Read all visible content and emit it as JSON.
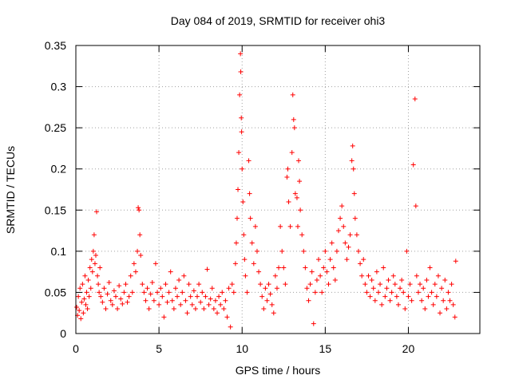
{
  "chart_data": {
    "type": "scatter",
    "title": "Day 084 of 2019, SRMTID for receiver ohi3",
    "xlabel": "GPS time / hours",
    "ylabel": "SRMTID / TECUs",
    "xlim": [
      0,
      24.3
    ],
    "ylim": [
      0,
      0.35
    ],
    "xticks": [
      0,
      5,
      10,
      15,
      20
    ],
    "xtick_labels": [
      "0",
      "5",
      "10",
      "15",
      "20"
    ],
    "yticks": [
      0,
      0.05,
      0.1,
      0.15,
      0.2,
      0.25,
      0.3,
      0.35
    ],
    "ytick_labels": [
      "0",
      "0.05",
      "0.1",
      "0.15",
      "0.2",
      "0.25",
      "0.3",
      "0.35"
    ],
    "grid": true,
    "marker": "+",
    "color": "#ff0000",
    "series": [
      {
        "name": "SRMTID",
        "points": [
          [
            0.05,
            0.032
          ],
          [
            0.1,
            0.022
          ],
          [
            0.15,
            0.045
          ],
          [
            0.2,
            0.028
          ],
          [
            0.25,
            0.055
          ],
          [
            0.3,
            0.018
          ],
          [
            0.35,
            0.038
          ],
          [
            0.4,
            0.06
          ],
          [
            0.45,
            0.025
          ],
          [
            0.5,
            0.042
          ],
          [
            0.55,
            0.07
          ],
          [
            0.6,
            0.035
          ],
          [
            0.65,
            0.05
          ],
          [
            0.7,
            0.03
          ],
          [
            0.75,
            0.065
          ],
          [
            0.8,
            0.045
          ],
          [
            0.85,
            0.08
          ],
          [
            0.9,
            0.055
          ],
          [
            0.95,
            0.09
          ],
          [
            1.0,
            0.075
          ],
          [
            1.05,
            0.1
          ],
          [
            1.1,
            0.12
          ],
          [
            1.15,
            0.085
          ],
          [
            1.2,
            0.095
          ],
          [
            1.25,
            0.148
          ],
          [
            1.3,
            0.07
          ],
          [
            1.35,
            0.06
          ],
          [
            1.4,
            0.05
          ],
          [
            1.45,
            0.08
          ],
          [
            1.5,
            0.045
          ],
          [
            1.6,
            0.038
          ],
          [
            1.7,
            0.055
          ],
          [
            1.8,
            0.03
          ],
          [
            1.9,
            0.048
          ],
          [
            2.0,
            0.062
          ],
          [
            2.1,
            0.04
          ],
          [
            2.2,
            0.035
          ],
          [
            2.3,
            0.052
          ],
          [
            2.4,
            0.045
          ],
          [
            2.5,
            0.03
          ],
          [
            2.6,
            0.058
          ],
          [
            2.7,
            0.042
          ],
          [
            2.8,
            0.036
          ],
          [
            2.9,
            0.05
          ],
          [
            3.0,
            0.06
          ],
          [
            3.1,
            0.038
          ],
          [
            3.2,
            0.045
          ],
          [
            3.3,
            0.07
          ],
          [
            3.4,
            0.05
          ],
          [
            3.5,
            0.085
          ],
          [
            3.6,
            0.075
          ],
          [
            3.7,
            0.1
          ],
          [
            3.75,
            0.153
          ],
          [
            3.8,
            0.15
          ],
          [
            3.85,
            0.12
          ],
          [
            3.9,
            0.095
          ],
          [
            4.0,
            0.06
          ],
          [
            4.1,
            0.05
          ],
          [
            4.2,
            0.04
          ],
          [
            4.3,
            0.055
          ],
          [
            4.4,
            0.03
          ],
          [
            4.5,
            0.048
          ],
          [
            4.6,
            0.062
          ],
          [
            4.7,
            0.04
          ],
          [
            4.8,
            0.085
          ],
          [
            4.9,
            0.05
          ],
          [
            5.0,
            0.035
          ],
          [
            5.1,
            0.055
          ],
          [
            5.2,
            0.045
          ],
          [
            5.3,
            0.02
          ],
          [
            5.4,
            0.06
          ],
          [
            5.5,
            0.038
          ],
          [
            5.6,
            0.05
          ],
          [
            5.7,
            0.075
          ],
          [
            5.8,
            0.04
          ],
          [
            5.9,
            0.03
          ],
          [
            6.0,
            0.055
          ],
          [
            6.1,
            0.045
          ],
          [
            6.2,
            0.065
          ],
          [
            6.3,
            0.035
          ],
          [
            6.4,
            0.05
          ],
          [
            6.5,
            0.07
          ],
          [
            6.6,
            0.04
          ],
          [
            6.7,
            0.025
          ],
          [
            6.8,
            0.06
          ],
          [
            6.9,
            0.045
          ],
          [
            7.0,
            0.035
          ],
          [
            7.1,
            0.052
          ],
          [
            7.2,
            0.03
          ],
          [
            7.3,
            0.045
          ],
          [
            7.4,
            0.06
          ],
          [
            7.5,
            0.038
          ],
          [
            7.6,
            0.05
          ],
          [
            7.7,
            0.03
          ],
          [
            7.8,
            0.045
          ],
          [
            7.9,
            0.078
          ],
          [
            8.0,
            0.035
          ],
          [
            8.1,
            0.042
          ],
          [
            8.2,
            0.055
          ],
          [
            8.3,
            0.03
          ],
          [
            8.4,
            0.04
          ],
          [
            8.5,
            0.025
          ],
          [
            8.6,
            0.045
          ],
          [
            8.7,
            0.035
          ],
          [
            8.8,
            0.05
          ],
          [
            8.9,
            0.03
          ],
          [
            9.0,
            0.04
          ],
          [
            9.1,
            0.02
          ],
          [
            9.2,
            0.055
          ],
          [
            9.3,
            0.008
          ],
          [
            9.4,
            0.06
          ],
          [
            9.5,
            0.05
          ],
          [
            9.6,
            0.085
          ],
          [
            9.65,
            0.11
          ],
          [
            9.7,
            0.14
          ],
          [
            9.75,
            0.175
          ],
          [
            9.8,
            0.22
          ],
          [
            9.85,
            0.29
          ],
          [
            9.9,
            0.34
          ],
          [
            9.92,
            0.318
          ],
          [
            9.95,
            0.262
          ],
          [
            9.97,
            0.245
          ],
          [
            10.0,
            0.2
          ],
          [
            10.05,
            0.16
          ],
          [
            10.1,
            0.12
          ],
          [
            10.15,
            0.09
          ],
          [
            10.2,
            0.07
          ],
          [
            10.3,
            0.05
          ],
          [
            10.4,
            0.21
          ],
          [
            10.45,
            0.17
          ],
          [
            10.5,
            0.14
          ],
          [
            10.6,
            0.11
          ],
          [
            10.7,
            0.085
          ],
          [
            10.8,
            0.13
          ],
          [
            10.9,
            0.1
          ],
          [
            11.0,
            0.075
          ],
          [
            11.1,
            0.06
          ],
          [
            11.2,
            0.045
          ],
          [
            11.3,
            0.03
          ],
          [
            11.4,
            0.055
          ],
          [
            11.5,
            0.04
          ],
          [
            11.6,
            0.06
          ],
          [
            11.7,
            0.048
          ],
          [
            11.8,
            0.035
          ],
          [
            11.9,
            0.025
          ],
          [
            12.0,
            0.07
          ],
          [
            12.1,
            0.055
          ],
          [
            12.2,
            0.08
          ],
          [
            12.3,
            0.13
          ],
          [
            12.4,
            0.1
          ],
          [
            12.5,
            0.08
          ],
          [
            12.6,
            0.06
          ],
          [
            12.7,
            0.19
          ],
          [
            12.75,
            0.2
          ],
          [
            12.8,
            0.16
          ],
          [
            12.9,
            0.13
          ],
          [
            13.0,
            0.22
          ],
          [
            13.05,
            0.29
          ],
          [
            13.1,
            0.26
          ],
          [
            13.15,
            0.25
          ],
          [
            13.2,
            0.17
          ],
          [
            13.3,
            0.165
          ],
          [
            13.35,
            0.13
          ],
          [
            13.4,
            0.21
          ],
          [
            13.45,
            0.185
          ],
          [
            13.5,
            0.15
          ],
          [
            13.6,
            0.12
          ],
          [
            13.7,
            0.1
          ],
          [
            13.8,
            0.08
          ],
          [
            13.9,
            0.055
          ],
          [
            14.0,
            0.04
          ],
          [
            14.1,
            0.06
          ],
          [
            14.2,
            0.075
          ],
          [
            14.3,
            0.012
          ],
          [
            14.4,
            0.05
          ],
          [
            14.5,
            0.065
          ],
          [
            14.6,
            0.09
          ],
          [
            14.7,
            0.07
          ],
          [
            14.8,
            0.05
          ],
          [
            14.9,
            0.08
          ],
          [
            15.0,
            0.1
          ],
          [
            15.1,
            0.075
          ],
          [
            15.2,
            0.06
          ],
          [
            15.3,
            0.09
          ],
          [
            15.4,
            0.11
          ],
          [
            15.5,
            0.08
          ],
          [
            15.6,
            0.065
          ],
          [
            15.7,
            0.1
          ],
          [
            15.8,
            0.125
          ],
          [
            15.9,
            0.14
          ],
          [
            16.0,
            0.155
          ],
          [
            16.1,
            0.13
          ],
          [
            16.2,
            0.11
          ],
          [
            16.3,
            0.09
          ],
          [
            16.4,
            0.105
          ],
          [
            16.5,
            0.12
          ],
          [
            16.6,
            0.21
          ],
          [
            16.65,
            0.228
          ],
          [
            16.7,
            0.2
          ],
          [
            16.75,
            0.17
          ],
          [
            16.8,
            0.14
          ],
          [
            16.9,
            0.12
          ],
          [
            17.0,
            0.1
          ],
          [
            17.1,
            0.085
          ],
          [
            17.2,
            0.07
          ],
          [
            17.3,
            0.09
          ],
          [
            17.4,
            0.06
          ],
          [
            17.5,
            0.05
          ],
          [
            17.6,
            0.07
          ],
          [
            17.7,
            0.045
          ],
          [
            17.8,
            0.065
          ],
          [
            17.9,
            0.055
          ],
          [
            18.0,
            0.04
          ],
          [
            18.1,
            0.075
          ],
          [
            18.2,
            0.05
          ],
          [
            18.3,
            0.06
          ],
          [
            18.4,
            0.035
          ],
          [
            18.5,
            0.08
          ],
          [
            18.6,
            0.045
          ],
          [
            18.7,
            0.055
          ],
          [
            18.8,
            0.065
          ],
          [
            18.9,
            0.04
          ],
          [
            19.0,
            0.05
          ],
          [
            19.1,
            0.07
          ],
          [
            19.2,
            0.06
          ],
          [
            19.3,
            0.045
          ],
          [
            19.4,
            0.035
          ],
          [
            19.5,
            0.055
          ],
          [
            19.6,
            0.065
          ],
          [
            19.7,
            0.05
          ],
          [
            19.8,
            0.03
          ],
          [
            19.9,
            0.1
          ],
          [
            20.0,
            0.045
          ],
          [
            20.1,
            0.06
          ],
          [
            20.2,
            0.04
          ],
          [
            20.3,
            0.205
          ],
          [
            20.4,
            0.285
          ],
          [
            20.45,
            0.155
          ],
          [
            20.5,
            0.07
          ],
          [
            20.6,
            0.05
          ],
          [
            20.7,
            0.06
          ],
          [
            20.8,
            0.04
          ],
          [
            20.9,
            0.055
          ],
          [
            21.0,
            0.03
          ],
          [
            21.1,
            0.065
          ],
          [
            21.2,
            0.045
          ],
          [
            21.3,
            0.08
          ],
          [
            21.4,
            0.05
          ],
          [
            21.5,
            0.035
          ],
          [
            21.6,
            0.06
          ],
          [
            21.7,
            0.045
          ],
          [
            21.8,
            0.07
          ],
          [
            21.9,
            0.025
          ],
          [
            22.0,
            0.055
          ],
          [
            22.1,
            0.04
          ],
          [
            22.2,
            0.065
          ],
          [
            22.3,
            0.03
          ],
          [
            22.4,
            0.05
          ],
          [
            22.5,
            0.04
          ],
          [
            22.6,
            0.06
          ],
          [
            22.7,
            0.035
          ],
          [
            22.8,
            0.02
          ],
          [
            22.85,
            0.088
          ]
        ]
      }
    ]
  }
}
